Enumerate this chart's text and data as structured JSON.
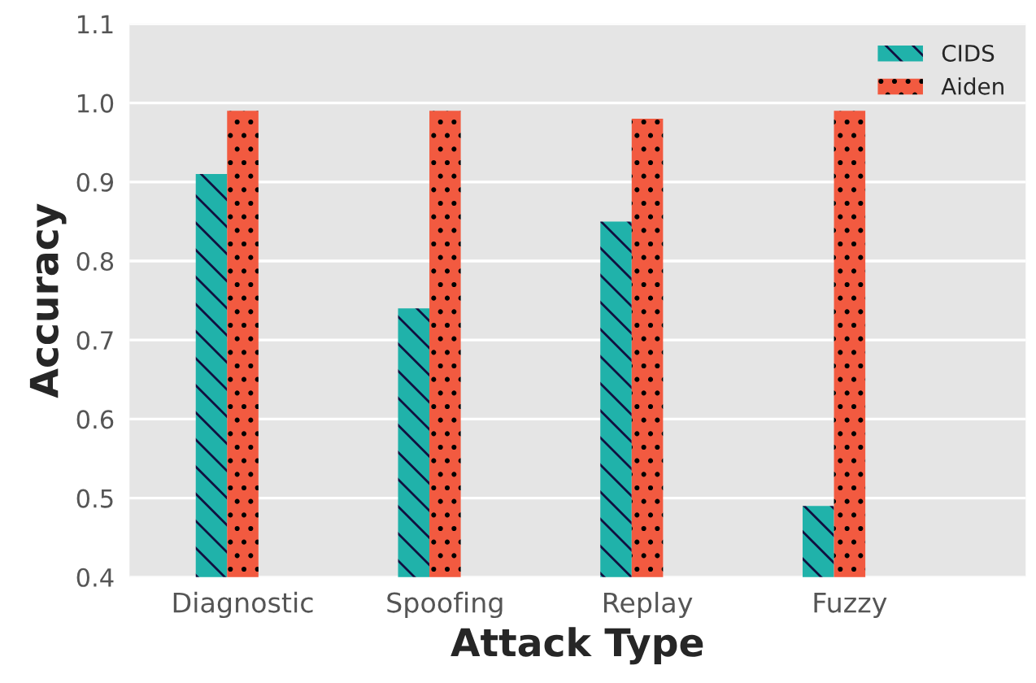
{
  "chart_data": {
    "type": "bar",
    "xlabel": "Attack Type",
    "ylabel": "Accuracy",
    "categories": [
      "Diagnostic",
      "Spoofing",
      "Replay",
      "Fuzzy"
    ],
    "series": [
      {
        "name": "CIDS",
        "color": "#20b2aa",
        "values": [
          0.91,
          0.74,
          0.85,
          0.49
        ]
      },
      {
        "name": "Aiden",
        "color": "#f25a40",
        "values": [
          0.99,
          0.99,
          0.98,
          0.99
        ]
      }
    ],
    "ylim": [
      0.4,
      1.1
    ],
    "yticks": [
      0.4,
      0.5,
      0.6,
      0.7,
      0.8,
      0.9,
      {
        "value": 1.0,
        "label": "1.0"
      },
      1.1
    ],
    "grid": "y",
    "legend": "top right"
  }
}
